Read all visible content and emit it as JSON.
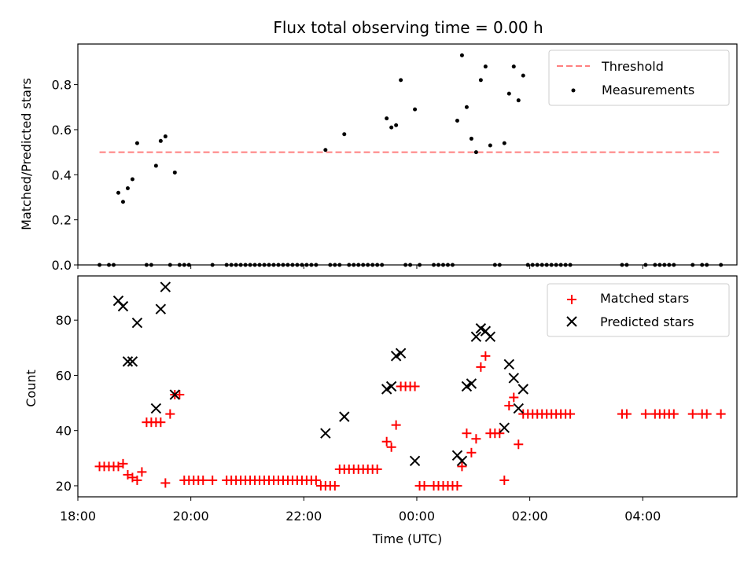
{
  "chart_data": [
    {
      "type": "scatter",
      "title": "Flux total observing time = 0.00 h",
      "xlabel": "",
      "ylabel": "Matched/Predicted stars",
      "xlim": [
        "18:00",
        "05:40"
      ],
      "ylim": [
        0,
        0.98
      ],
      "yticks": [
        0.0,
        0.2,
        0.4,
        0.6,
        0.8
      ],
      "ytick_labels": [
        "0.0",
        "0.2",
        "0.4",
        "0.6",
        "0.8"
      ],
      "legend": {
        "position": "top-right",
        "entries": [
          "Threshold",
          "Measurements"
        ]
      },
      "threshold": {
        "name": "Threshold",
        "y": 0.5,
        "x_start": "18:23",
        "x_end": "05:21",
        "color": "#ff7f7f",
        "style": "dashed"
      },
      "series": [
        {
          "name": "Measurements",
          "color": "#000000",
          "marker": "dot",
          "points": [
            [
              "18:23",
              0
            ],
            [
              "18:33",
              0
            ],
            [
              "18:38",
              0
            ],
            [
              "18:43",
              0.32
            ],
            [
              "18:48",
              0.28
            ],
            [
              "18:53",
              0.34
            ],
            [
              "18:58",
              0.38
            ],
            [
              "19:03",
              0.54
            ],
            [
              "19:13",
              0
            ],
            [
              "19:18",
              0
            ],
            [
              "19:23",
              0.44
            ],
            [
              "19:28",
              0.55
            ],
            [
              "19:33",
              0.57
            ],
            [
              "19:38",
              0
            ],
            [
              "19:43",
              0.41
            ],
            [
              "19:48",
              0
            ],
            [
              "19:53",
              0
            ],
            [
              "19:58",
              0
            ],
            [
              "20:23",
              0
            ],
            [
              "20:38",
              0
            ],
            [
              "20:43",
              0
            ],
            [
              "20:48",
              0
            ],
            [
              "20:53",
              0
            ],
            [
              "20:58",
              0
            ],
            [
              "21:03",
              0
            ],
            [
              "21:08",
              0
            ],
            [
              "21:13",
              0
            ],
            [
              "21:18",
              0
            ],
            [
              "21:23",
              0
            ],
            [
              "21:28",
              0
            ],
            [
              "21:33",
              0
            ],
            [
              "21:38",
              0
            ],
            [
              "21:43",
              0
            ],
            [
              "21:48",
              0
            ],
            [
              "21:53",
              0
            ],
            [
              "21:58",
              0
            ],
            [
              "22:03",
              0
            ],
            [
              "22:08",
              0
            ],
            [
              "22:13",
              0
            ],
            [
              "22:23",
              0.51
            ],
            [
              "22:28",
              0
            ],
            [
              "22:33",
              0
            ],
            [
              "22:38",
              0
            ],
            [
              "22:43",
              0.58
            ],
            [
              "22:48",
              0
            ],
            [
              "22:53",
              0
            ],
            [
              "22:58",
              0
            ],
            [
              "23:03",
              0
            ],
            [
              "23:08",
              0
            ],
            [
              "23:13",
              0
            ],
            [
              "23:18",
              0
            ],
            [
              "23:23",
              0
            ],
            [
              "23:28",
              0.65
            ],
            [
              "23:33",
              0.61
            ],
            [
              "23:38",
              0.62
            ],
            [
              "23:43",
              0.82
            ],
            [
              "23:48",
              0
            ],
            [
              "23:53",
              0
            ],
            [
              "23:58",
              0.69
            ],
            [
              "24:03",
              0
            ],
            [
              "24:18",
              0
            ],
            [
              "24:23",
              0
            ],
            [
              "24:28",
              0
            ],
            [
              "24:33",
              0
            ],
            [
              "24:38",
              0
            ],
            [
              "24:43",
              0.64
            ],
            [
              "24:48",
              0.93
            ],
            [
              "24:53",
              0.7
            ],
            [
              "24:58",
              0.56
            ],
            [
              "25:03",
              0.5
            ],
            [
              "25:08",
              0.82
            ],
            [
              "25:13",
              0.88
            ],
            [
              "25:18",
              0.53
            ],
            [
              "25:23",
              0
            ],
            [
              "25:28",
              0
            ],
            [
              "25:33",
              0.54
            ],
            [
              "25:38",
              0.76
            ],
            [
              "25:43",
              0.88
            ],
            [
              "25:48",
              0.73
            ],
            [
              "25:53",
              0.84
            ],
            [
              "25:58",
              0
            ],
            [
              "26:03",
              0
            ],
            [
              "26:08",
              0
            ],
            [
              "26:13",
              0
            ],
            [
              "26:18",
              0
            ],
            [
              "26:23",
              0
            ],
            [
              "26:28",
              0
            ],
            [
              "26:33",
              0
            ],
            [
              "26:38",
              0
            ],
            [
              "26:43",
              0
            ],
            [
              "27:38",
              0
            ],
            [
              "27:43",
              0
            ],
            [
              "28:03",
              0
            ],
            [
              "28:13",
              0
            ],
            [
              "28:18",
              0
            ],
            [
              "28:23",
              0
            ],
            [
              "28:28",
              0
            ],
            [
              "28:33",
              0
            ],
            [
              "28:53",
              0
            ],
            [
              "29:03",
              0
            ],
            [
              "29:08",
              0
            ],
            [
              "29:23",
              0
            ]
          ]
        }
      ]
    },
    {
      "type": "scatter",
      "title": "",
      "xlabel": "Time (UTC)",
      "ylabel": "Count",
      "xlim": [
        "18:00",
        "05:40"
      ],
      "ylim": [
        16,
        96
      ],
      "yticks": [
        20,
        40,
        60,
        80
      ],
      "ytick_labels": [
        "20",
        "40",
        "60",
        "80"
      ],
      "xticks": [
        "18:00",
        "20:00",
        "22:00",
        "00:00",
        "02:00",
        "04:00"
      ],
      "legend": {
        "position": "top-right",
        "entries": [
          "Matched stars",
          "Predicted stars"
        ]
      },
      "series": [
        {
          "name": "Matched stars",
          "color": "#ff0000",
          "marker": "plus",
          "points": [
            [
              "18:23",
              27
            ],
            [
              "18:28",
              27
            ],
            [
              "18:33",
              27
            ],
            [
              "18:38",
              27
            ],
            [
              "18:43",
              27
            ],
            [
              "18:48",
              28
            ],
            [
              "18:53",
              24
            ],
            [
              "18:58",
              23
            ],
            [
              "19:03",
              22
            ],
            [
              "19:08",
              25
            ],
            [
              "19:13",
              43
            ],
            [
              "19:18",
              43
            ],
            [
              "19:23",
              43
            ],
            [
              "19:28",
              43
            ],
            [
              "19:33",
              21
            ],
            [
              "19:38",
              46
            ],
            [
              "19:43",
              53
            ],
            [
              "19:48",
              53
            ],
            [
              "19:53",
              22
            ],
            [
              "19:58",
              22
            ],
            [
              "20:03",
              22
            ],
            [
              "20:08",
              22
            ],
            [
              "20:13",
              22
            ],
            [
              "20:23",
              22
            ],
            [
              "20:38",
              22
            ],
            [
              "20:43",
              22
            ],
            [
              "20:48",
              22
            ],
            [
              "20:53",
              22
            ],
            [
              "20:58",
              22
            ],
            [
              "21:03",
              22
            ],
            [
              "21:08",
              22
            ],
            [
              "21:13",
              22
            ],
            [
              "21:18",
              22
            ],
            [
              "21:23",
              22
            ],
            [
              "21:28",
              22
            ],
            [
              "21:33",
              22
            ],
            [
              "21:38",
              22
            ],
            [
              "21:43",
              22
            ],
            [
              "21:48",
              22
            ],
            [
              "21:53",
              22
            ],
            [
              "21:58",
              22
            ],
            [
              "22:03",
              22
            ],
            [
              "22:08",
              22
            ],
            [
              "22:13",
              22
            ],
            [
              "22:18",
              20
            ],
            [
              "22:23",
              20
            ],
            [
              "22:28",
              20
            ],
            [
              "22:33",
              20
            ],
            [
              "22:38",
              26
            ],
            [
              "22:43",
              26
            ],
            [
              "22:48",
              26
            ],
            [
              "22:53",
              26
            ],
            [
              "22:58",
              26
            ],
            [
              "23:03",
              26
            ],
            [
              "23:08",
              26
            ],
            [
              "23:13",
              26
            ],
            [
              "23:18",
              26
            ],
            [
              "23:28",
              36
            ],
            [
              "23:33",
              34
            ],
            [
              "23:38",
              42
            ],
            [
              "23:43",
              56
            ],
            [
              "23:48",
              56
            ],
            [
              "23:53",
              56
            ],
            [
              "23:58",
              56
            ],
            [
              "24:03",
              20
            ],
            [
              "24:08",
              20
            ],
            [
              "24:18",
              20
            ],
            [
              "24:23",
              20
            ],
            [
              "24:28",
              20
            ],
            [
              "24:33",
              20
            ],
            [
              "24:38",
              20
            ],
            [
              "24:43",
              20
            ],
            [
              "24:48",
              27
            ],
            [
              "24:53",
              39
            ],
            [
              "24:58",
              32
            ],
            [
              "25:03",
              37
            ],
            [
              "25:08",
              63
            ],
            [
              "25:13",
              67
            ],
            [
              "25:18",
              39
            ],
            [
              "25:23",
              39
            ],
            [
              "25:28",
              39
            ],
            [
              "25:33",
              22
            ],
            [
              "25:38",
              49
            ],
            [
              "25:43",
              52
            ],
            [
              "25:48",
              35
            ],
            [
              "25:53",
              46
            ],
            [
              "25:58",
              46
            ],
            [
              "26:03",
              46
            ],
            [
              "26:08",
              46
            ],
            [
              "26:13",
              46
            ],
            [
              "26:18",
              46
            ],
            [
              "26:23",
              46
            ],
            [
              "26:28",
              46
            ],
            [
              "26:33",
              46
            ],
            [
              "26:38",
              46
            ],
            [
              "26:43",
              46
            ],
            [
              "27:38",
              46
            ],
            [
              "27:43",
              46
            ],
            [
              "28:03",
              46
            ],
            [
              "28:13",
              46
            ],
            [
              "28:18",
              46
            ],
            [
              "28:23",
              46
            ],
            [
              "28:28",
              46
            ],
            [
              "28:33",
              46
            ],
            [
              "28:53",
              46
            ],
            [
              "29:03",
              46
            ],
            [
              "29:08",
              46
            ],
            [
              "29:23",
              46
            ]
          ]
        },
        {
          "name": "Predicted stars",
          "color": "#000000",
          "marker": "x",
          "points": [
            [
              "18:43",
              87
            ],
            [
              "18:48",
              85
            ],
            [
              "18:53",
              65
            ],
            [
              "18:58",
              65
            ],
            [
              "19:03",
              79
            ],
            [
              "19:23",
              48
            ],
            [
              "19:28",
              84
            ],
            [
              "19:33",
              92
            ],
            [
              "19:43",
              53
            ],
            [
              "22:23",
              39
            ],
            [
              "22:43",
              45
            ],
            [
              "23:28",
              55
            ],
            [
              "23:33",
              56
            ],
            [
              "23:38",
              67
            ],
            [
              "23:43",
              68
            ],
            [
              "23:58",
              29
            ],
            [
              "24:43",
              31
            ],
            [
              "24:48",
              29
            ],
            [
              "24:53",
              56
            ],
            [
              "24:58",
              57
            ],
            [
              "25:03",
              74
            ],
            [
              "25:08",
              77
            ],
            [
              "25:13",
              76
            ],
            [
              "25:18",
              74
            ],
            [
              "25:33",
              41
            ],
            [
              "25:38",
              64
            ],
            [
              "25:43",
              59
            ],
            [
              "25:48",
              48
            ],
            [
              "25:53",
              55
            ]
          ]
        }
      ]
    }
  ]
}
